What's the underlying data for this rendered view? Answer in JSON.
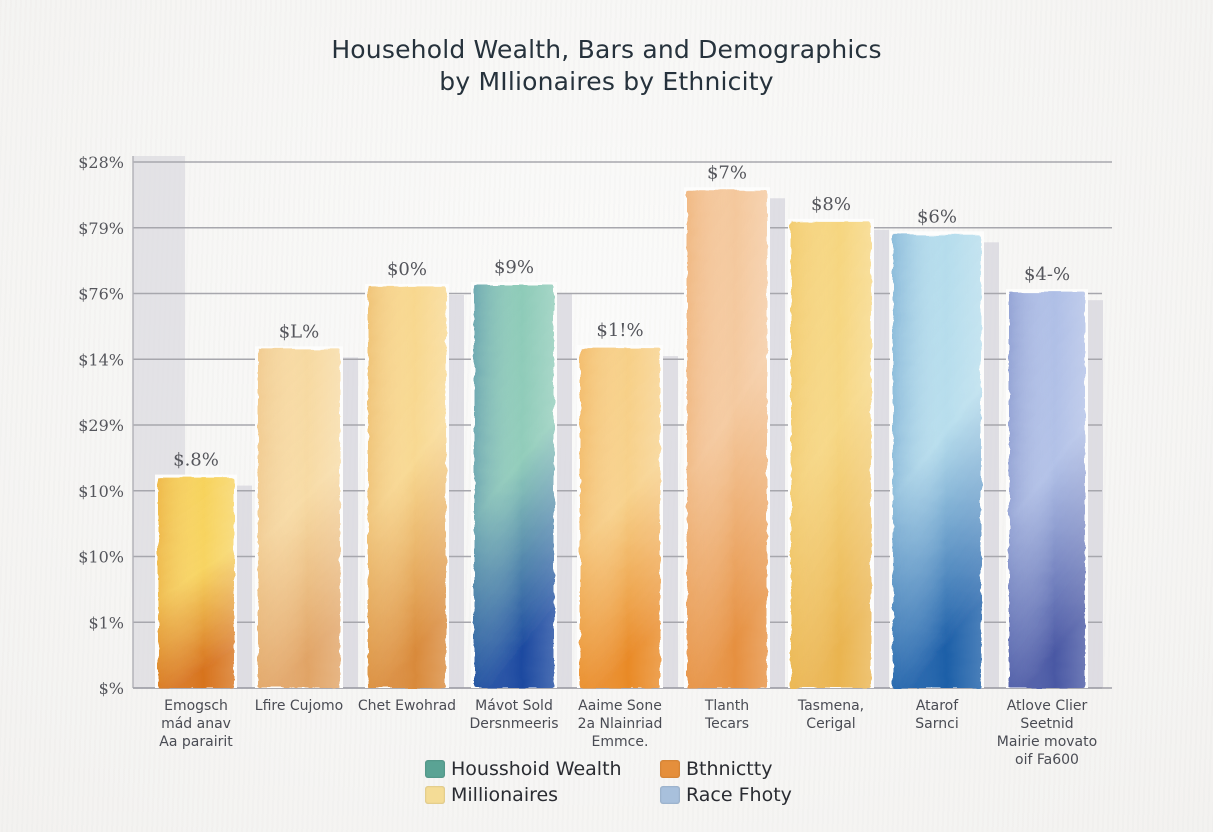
{
  "chart_data": {
    "type": "bar",
    "title_lines": [
      "Household Wealth, Bars and Demographics",
      "by MIlionaires by Ethnicity"
    ],
    "xlabel": "",
    "ylabel": "",
    "y_tick_labels": [
      "$%",
      "$1%",
      "$10%",
      "$10%",
      "$29%",
      "$14%",
      "$76%",
      "$79%",
      "$28%"
    ],
    "y_scale_note": "values expressed in tick-index units (0 = bottom tick '$%', 8 = top tick '$28%')",
    "ylim": [
      0,
      8
    ],
    "grid": true,
    "categories": [
      [
        "Emogsch",
        "mád anav",
        "Aa parairit"
      ],
      [
        "Lfire Cujomo"
      ],
      [
        "Chet Ewohrad"
      ],
      [
        "Mávot Sold",
        "Dersnmeeris"
      ],
      [
        "Aaime Sone",
        "2a Nlainriad",
        "Emmce."
      ],
      [
        "Tlanth",
        "Tecars"
      ],
      [
        "Tasmena,",
        "Cerigal"
      ],
      [
        "Atarof",
        "Sarnci"
      ],
      [
        "Atlove Clier",
        "Seetnid",
        "Mairie movato",
        "oif Fa600"
      ]
    ],
    "values": [
      3.2,
      5.15,
      6.1,
      6.13,
      5.17,
      7.57,
      7.09,
      6.9,
      6.02
    ],
    "data_labels": [
      "$.8%",
      "$L%",
      "$0%",
      "$9%",
      "$1!%",
      "$7%",
      "$8%",
      "$6%",
      "$4-%"
    ],
    "bar_colors": [
      {
        "top": "#f7d25a",
        "bottom": "#d7731f"
      },
      {
        "top": "#f7d9a0",
        "bottom": "#e1a466"
      },
      {
        "top": "#f8d78d",
        "bottom": "#d98a3a"
      },
      {
        "top": "#8ccab7",
        "bottom": "#1a48a0"
      },
      {
        "top": "#f7cf86",
        "bottom": "#e98a28"
      },
      {
        "top": "#f4c79b",
        "bottom": "#e69040"
      },
      {
        "top": "#f6d57e",
        "bottom": "#eab450"
      },
      {
        "top": "#b4dcec",
        "bottom": "#1c5ea8"
      },
      {
        "top": "#aebee6",
        "bottom": "#4a58a4"
      }
    ],
    "legend": [
      {
        "label": "Housshoid Wealth",
        "color": "#5aa394"
      },
      {
        "label": "Bthnictty",
        "color": "#e58f3c"
      },
      {
        "label": "Millionaires",
        "color": "#f4dc96"
      },
      {
        "label": "Race Fhoty",
        "color": "#a8c0dc"
      }
    ],
    "legend_position": "bottom-center"
  }
}
